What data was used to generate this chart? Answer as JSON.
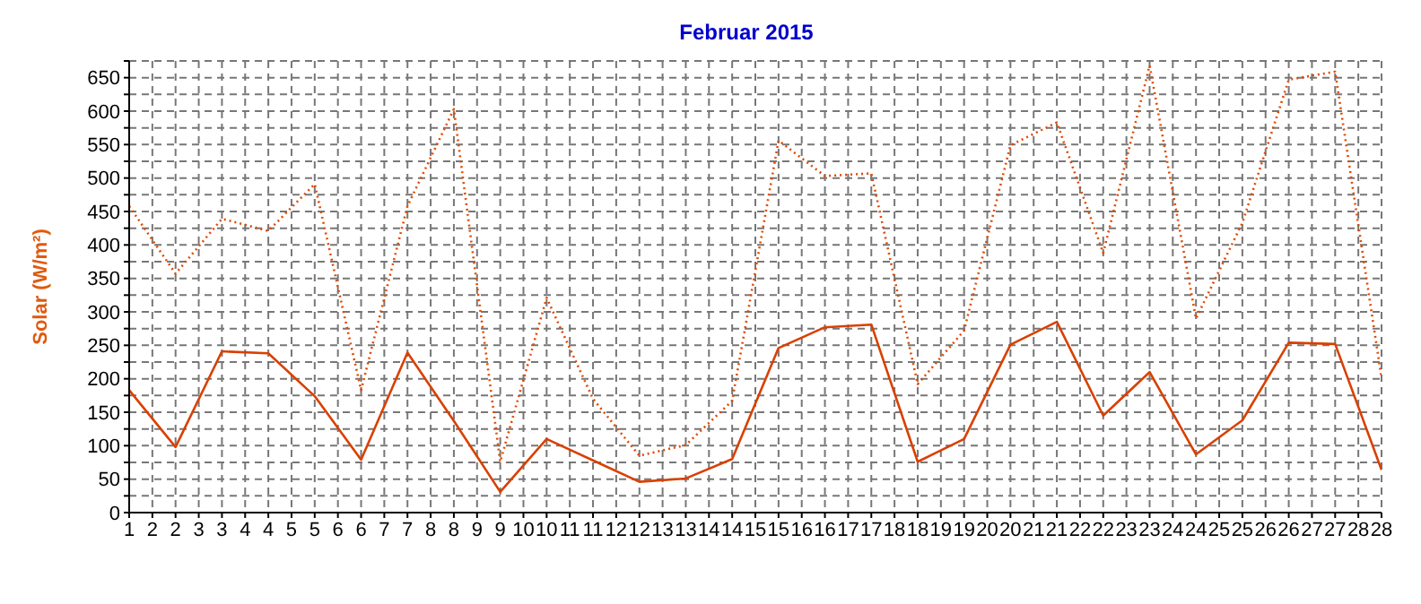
{
  "chart_data": {
    "type": "line",
    "title": "Februar 2015",
    "ylabel": "Solar  (W/m²)",
    "x": [
      1,
      2,
      3,
      4,
      5,
      6,
      7,
      8,
      9,
      10,
      11,
      12,
      13,
      14,
      15,
      16,
      17,
      18,
      19,
      20,
      21,
      22,
      23,
      24,
      25,
      26,
      27,
      28
    ],
    "series": [
      {
        "color": "#e04a00",
        "line_style": "dotted",
        "values": [
          458,
          357,
          439,
          421,
          491,
          183,
          458,
          603,
          76,
          321,
          170,
          85,
          101,
          167,
          556,
          503,
          507,
          192,
          272,
          549,
          583,
          388,
          668,
          290,
          433,
          647,
          659,
          201
        ]
      },
      {
        "color": "#d94000",
        "line_style": "solid",
        "values": [
          183,
          98,
          241,
          238,
          174,
          79,
          239,
          137,
          31,
          110,
          78,
          46,
          51,
          80,
          246,
          277,
          281,
          76,
          110,
          251,
          285,
          145,
          210,
          87,
          138,
          254,
          252,
          64
        ]
      }
    ],
    "xlim": [
      1,
      28
    ],
    "xticks": [
      1,
      {
        "value": 1.5,
        "label": "2"
      },
      2,
      {
        "value": 2.5,
        "label": "3"
      },
      3,
      {
        "value": 3.5,
        "label": "4"
      },
      4,
      {
        "value": 4.5,
        "label": "5"
      },
      5,
      {
        "value": 5.5,
        "label": "6"
      },
      6,
      {
        "value": 6.5,
        "label": "7"
      },
      7,
      {
        "value": 7.5,
        "label": "8"
      },
      8,
      {
        "value": 8.5,
        "label": "9"
      },
      9,
      {
        "value": 9.5,
        "label": "10"
      },
      10,
      {
        "value": 10.5,
        "label": "11"
      },
      11,
      {
        "value": 11.5,
        "label": "12"
      },
      12,
      {
        "value": 12.5,
        "label": "13"
      },
      13,
      {
        "value": 13.5,
        "label": "14"
      },
      14,
      {
        "value": 14.5,
        "label": "15"
      },
      15,
      {
        "value": 15.5,
        "label": "16"
      },
      16,
      {
        "value": 16.5,
        "label": "17"
      },
      17,
      {
        "value": 17.5,
        "label": "18"
      },
      18,
      {
        "value": 18.5,
        "label": "19"
      },
      19,
      {
        "value": 19.5,
        "label": "20"
      },
      20,
      {
        "value": 20.5,
        "label": "21"
      },
      21,
      {
        "value": 21.5,
        "label": "22"
      },
      22,
      {
        "value": 22.5,
        "label": "23"
      },
      23,
      {
        "value": 23.5,
        "label": "24"
      },
      24,
      {
        "value": 24.5,
        "label": "25"
      },
      25,
      {
        "value": 25.5,
        "label": "26"
      },
      26,
      {
        "value": 26.5,
        "label": "27"
      },
      27,
      {
        "value": 27.5,
        "label": "28"
      },
      28
    ],
    "ylim": [
      0,
      675
    ],
    "yticks": [
      0,
      {
        "value": 25,
        "label": null
      },
      50,
      {
        "value": 75,
        "label": null
      },
      100,
      {
        "value": 125,
        "label": null
      },
      150,
      {
        "value": 175,
        "label": null
      },
      200,
      {
        "value": 225,
        "label": null
      },
      250,
      {
        "value": 275,
        "label": null
      },
      300,
      {
        "value": 325,
        "label": null
      },
      350,
      {
        "value": 375,
        "label": null
      },
      400,
      {
        "value": 425,
        "label": null
      },
      450,
      {
        "value": 475,
        "label": null
      },
      500,
      {
        "value": 525,
        "label": null
      },
      550,
      {
        "value": 575,
        "label": null
      },
      600,
      {
        "value": 625,
        "label": null
      },
      650,
      {
        "value": 675,
        "label": null
      }
    ],
    "grid": true,
    "legend": false,
    "marker": "none"
  }
}
